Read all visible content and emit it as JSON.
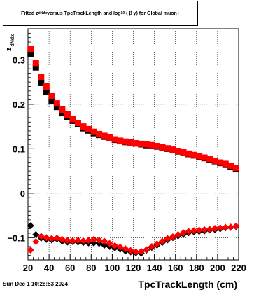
{
  "chart_data": {
    "type": "scatter",
    "title": {
      "prefix": "Fitted  z",
      "prefix_sub": "dNdx",
      "middle": "  versus TpcTrackLength and log",
      "log_sub": "10",
      "suffix": "(  β  γ)  for Global muon+"
    },
    "xlabel": "TpcTrackLength (cm)",
    "ylabel": "z",
    "ylabel_sub": "dNdx",
    "xlim": [
      20,
      220
    ],
    "ylim": [
      -0.15,
      0.37
    ],
    "x_ticks": [
      20,
      40,
      60,
      80,
      100,
      120,
      140,
      160,
      180,
      200,
      220
    ],
    "y_ticks": [
      -0.1,
      0,
      0.1,
      0.2,
      0.3
    ],
    "y_tick_labels": [
      "−0.1",
      "0",
      "0.1",
      "0.2",
      "0.3"
    ],
    "grid": true,
    "series": [
      {
        "marker": "square",
        "color": "#000000",
        "x": [
          22.5,
          27.5,
          32.5,
          37.5,
          42.5,
          47.5,
          52.5,
          57.5,
          62.5,
          67.5,
          72.5,
          77.5,
          82.5,
          87.5,
          92.5,
          97.5,
          102.5,
          107.5,
          112.5,
          117.5,
          122.5,
          127.5,
          132.5,
          137.5,
          142.5,
          147.5,
          152.5,
          157.5,
          162.5,
          167.5,
          172.5,
          177.5,
          182.5,
          187.5,
          192.5,
          197.5,
          202.5,
          207.5,
          212.5,
          217.5
        ],
        "y": [
          0.313,
          0.283,
          0.248,
          0.228,
          0.208,
          0.194,
          0.18,
          0.171,
          0.163,
          0.155,
          0.146,
          0.141,
          0.135,
          0.131,
          0.127,
          0.124,
          0.12,
          0.117,
          0.115,
          0.113,
          0.112,
          0.11,
          0.108,
          0.107,
          0.105,
          0.102,
          0.1,
          0.097,
          0.094,
          0.091,
          0.088,
          0.085,
          0.082,
          0.079,
          0.076,
          0.072,
          0.068,
          0.064,
          0.06,
          0.055
        ]
      },
      {
        "marker": "square",
        "color": "#ff0000",
        "x": [
          22.5,
          27.5,
          32.5,
          37.5,
          42.5,
          47.5,
          52.5,
          57.5,
          62.5,
          67.5,
          72.5,
          77.5,
          82.5,
          87.5,
          92.5,
          97.5,
          102.5,
          107.5,
          112.5,
          117.5,
          122.5,
          127.5,
          132.5,
          137.5,
          142.5,
          147.5,
          152.5,
          157.5,
          162.5,
          167.5,
          172.5,
          177.5,
          182.5,
          187.5,
          192.5,
          197.5,
          202.5,
          207.5,
          212.5,
          217.5
        ],
        "y": [
          0.325,
          0.293,
          0.262,
          0.24,
          0.218,
          0.202,
          0.188,
          0.177,
          0.167,
          0.158,
          0.15,
          0.144,
          0.138,
          0.133,
          0.129,
          0.125,
          0.121,
          0.118,
          0.116,
          0.114,
          0.112,
          0.111,
          0.11,
          0.108,
          0.106,
          0.103,
          0.101,
          0.098,
          0.095,
          0.092,
          0.089,
          0.086,
          0.083,
          0.08,
          0.077,
          0.073,
          0.069,
          0.066,
          0.062,
          0.057
        ]
      },
      {
        "marker": "diamond",
        "color": "#000000",
        "x": [
          22.5,
          27.5,
          32.5,
          37.5,
          42.5,
          47.5,
          52.5,
          57.5,
          62.5,
          67.5,
          72.5,
          77.5,
          82.5,
          87.5,
          92.5,
          97.5,
          102.5,
          107.5,
          112.5,
          117.5,
          122.5,
          127.5,
          132.5,
          137.5,
          142.5,
          147.5,
          152.5,
          157.5,
          162.5,
          167.5,
          172.5,
          177.5,
          182.5,
          187.5,
          192.5,
          197.5,
          202.5,
          207.5,
          212.5,
          217.5
        ],
        "y": [
          -0.073,
          -0.093,
          -0.101,
          -0.104,
          -0.105,
          -0.103,
          -0.108,
          -0.11,
          -0.109,
          -0.11,
          -0.111,
          -0.112,
          -0.112,
          -0.113,
          -0.117,
          -0.12,
          -0.123,
          -0.126,
          -0.13,
          -0.132,
          -0.134,
          -0.135,
          -0.128,
          -0.122,
          -0.117,
          -0.111,
          -0.105,
          -0.1,
          -0.096,
          -0.092,
          -0.089,
          -0.087,
          -0.086,
          -0.085,
          -0.083,
          -0.082,
          -0.08,
          -0.078,
          -0.077,
          -0.075
        ]
      },
      {
        "marker": "diamond",
        "color": "#ff0000",
        "x": [
          22.5,
          27.5,
          32.5,
          37.5,
          42.5,
          47.5,
          52.5,
          57.5,
          62.5,
          67.5,
          72.5,
          77.5,
          82.5,
          87.5,
          92.5,
          97.5,
          102.5,
          107.5,
          112.5,
          117.5,
          122.5,
          127.5,
          132.5,
          137.5,
          142.5,
          147.5,
          152.5,
          157.5,
          162.5,
          167.5,
          172.5,
          177.5,
          182.5,
          187.5,
          192.5,
          197.5,
          202.5,
          207.5,
          212.5,
          217.5
        ],
        "y": [
          -0.128,
          -0.109,
          -0.097,
          -0.1,
          -0.102,
          -0.101,
          -0.104,
          -0.106,
          -0.107,
          -0.106,
          -0.107,
          -0.106,
          -0.104,
          -0.106,
          -0.108,
          -0.113,
          -0.118,
          -0.121,
          -0.125,
          -0.129,
          -0.132,
          -0.131,
          -0.127,
          -0.12,
          -0.114,
          -0.108,
          -0.102,
          -0.098,
          -0.093,
          -0.089,
          -0.086,
          -0.084,
          -0.083,
          -0.082,
          -0.081,
          -0.079,
          -0.078,
          -0.077,
          -0.076,
          -0.074
        ]
      }
    ]
  },
  "footer": {
    "timestamp": "Sun Dec  1 10:28:53 2024"
  }
}
